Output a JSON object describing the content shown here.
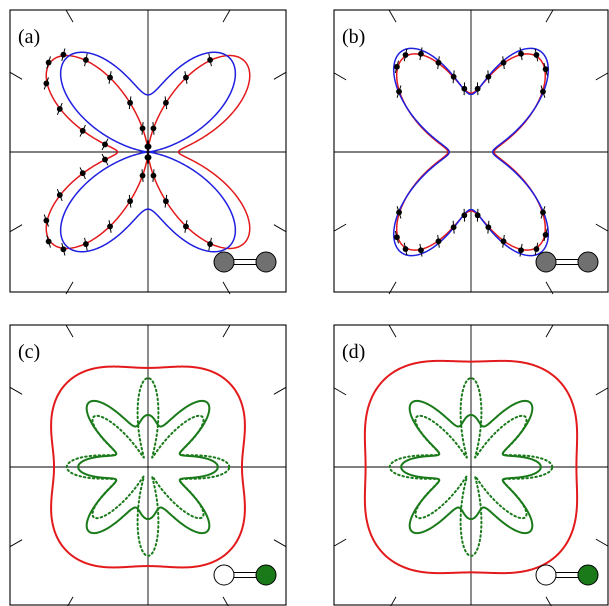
{
  "colors": {
    "red": "#e31a1c",
    "blue": "#1f1fe0",
    "green": "#1a7a1a",
    "atom_gray": "#707070",
    "points": "#000000"
  },
  "chart_data": [
    {
      "panel": "(a)",
      "type": "polar",
      "molecule_icon": "homonuclear-diatomic-gray",
      "grid": false,
      "series": [
        {
          "color": "red",
          "style": "solid",
          "shape": {
            "a2": 0.12,
            "a4": -0.46,
            "a6": 0.0,
            "a8": 0.0,
            "base": 0.58
          }
        },
        {
          "color": "blue",
          "style": "solid",
          "shape": {
            "a2": -0.25,
            "a4": -0.38,
            "a6": 0.0,
            "a8": 0.0,
            "base": 0.58
          }
        }
      ],
      "points": {
        "angles_deg": [
          56,
          63,
          70,
          77,
          84,
          96,
          103,
          110,
          117,
          124,
          131,
          138,
          146,
          154,
          162,
          170
        ],
        "follows": 0,
        "mirror_y": true,
        "error": 0.05
      }
    },
    {
      "panel": "(b)",
      "type": "polar",
      "molecule_icon": "homonuclear-diatomic-gray",
      "grid": false,
      "series": [
        {
          "color": "red",
          "style": "solid",
          "shape": {
            "a2": -0.22,
            "a4": -0.25,
            "a6": 0.08,
            "a8": 0.0,
            "base": 0.57
          }
        },
        {
          "color": "blue",
          "style": "solid",
          "shape": {
            "a2": -0.24,
            "a4": -0.27,
            "a6": 0.1,
            "a8": 0.0,
            "base": 0.58
          }
        }
      ],
      "points": {
        "angles_deg": [
          40,
          48,
          56,
          63,
          70,
          77,
          84,
          96,
          103,
          110,
          117,
          124,
          131,
          140
        ],
        "follows": 0,
        "mirror_y": true,
        "error": 0.05
      }
    },
    {
      "panel": "(c)",
      "type": "polar",
      "molecule_icon": "heteronuclear-diatomic-white-green",
      "grid": false,
      "series": [
        {
          "color": "red",
          "style": "solid",
          "shape": {
            "a2": -0.02,
            "a4": -0.08,
            "a6": 0.0,
            "a8": 0.0,
            "base": 0.84
          }
        },
        {
          "color": "green",
          "style": "solid",
          "shape": {
            "a2": 0.0,
            "a4": -0.1,
            "a6": 0.07,
            "a8": 0.13,
            "base": 0.45
          }
        },
        {
          "color": "green",
          "style": "dotted",
          "shape": {
            "a2": 0.05,
            "a4": 0.05,
            "a6": -0.08,
            "a8": 0.22,
            "base": 0.4
          }
        }
      ]
    },
    {
      "panel": "(d)",
      "type": "polar",
      "molecule_icon": "heteronuclear-diatomic-white-green",
      "grid": false,
      "series": [
        {
          "color": "red",
          "style": "solid",
          "shape": {
            "a2": 0.0,
            "a4": -0.07,
            "a6": 0.0,
            "a8": 0.0,
            "base": 0.9
          }
        },
        {
          "color": "green",
          "style": "solid",
          "shape": {
            "a2": 0.0,
            "a4": -0.1,
            "a6": 0.07,
            "a8": 0.13,
            "base": 0.45
          }
        },
        {
          "color": "green",
          "style": "dotted",
          "shape": {
            "a2": 0.05,
            "a4": 0.05,
            "a6": -0.08,
            "a8": 0.22,
            "base": 0.4
          }
        }
      ]
    }
  ]
}
